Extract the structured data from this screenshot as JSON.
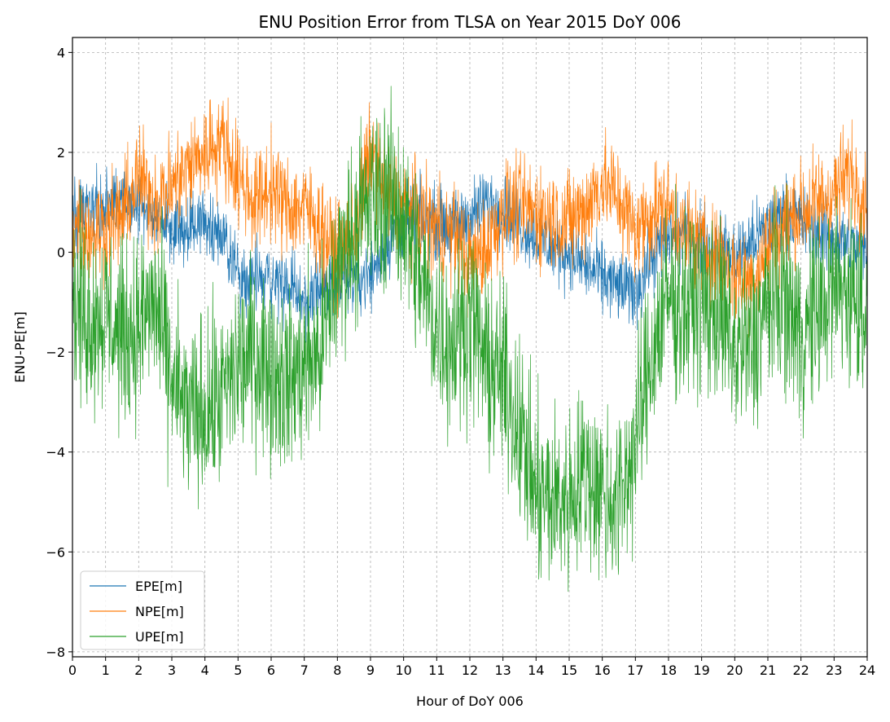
{
  "chart_data": {
    "type": "line",
    "title": "ENU Position Error from TLSA on Year 2015 DoY 006",
    "xlabel": "Hour of DoY 006",
    "ylabel": "ENU-PE[m]",
    "xlim": [
      0,
      24
    ],
    "ylim": [
      -8.1,
      4.3
    ],
    "x_ticks": [
      0,
      1,
      2,
      3,
      4,
      5,
      6,
      7,
      8,
      9,
      10,
      11,
      12,
      13,
      14,
      15,
      16,
      17,
      18,
      19,
      20,
      21,
      22,
      23,
      24
    ],
    "x_tick_labels": [
      "0",
      "1",
      "2",
      "3",
      "4",
      "5",
      "6",
      "7",
      "8",
      "9",
      "10",
      "11",
      "12",
      "13",
      "14",
      "15",
      "16",
      "17",
      "18",
      "19",
      "20",
      "21",
      "22",
      "23",
      "24"
    ],
    "y_ticks": [
      4,
      2,
      0,
      -2,
      -4,
      -6,
      -8
    ],
    "y_tick_labels": [
      "4",
      "2",
      "0",
      "−2",
      "−4",
      "−6",
      "−8"
    ],
    "grid": true,
    "legend_position": "lower-left",
    "x": [
      0,
      0.5,
      1,
      1.5,
      2,
      2.5,
      3,
      3.5,
      4,
      4.5,
      5,
      5.5,
      6,
      6.5,
      7,
      7.5,
      8,
      8.5,
      9,
      9.5,
      10,
      10.5,
      11,
      11.5,
      12,
      12.5,
      13,
      13.5,
      14,
      14.5,
      15,
      15.5,
      16,
      16.5,
      17,
      17.5,
      18,
      18.5,
      19,
      19.5,
      20,
      20.5,
      21,
      21.5,
      22,
      22.5,
      23,
      23.5,
      24
    ],
    "series": [
      {
        "name": "EPE[m]",
        "color": "#1f77b4",
        "values": [
          0.7,
          0.8,
          0.9,
          1.0,
          0.9,
          0.7,
          0.5,
          0.5,
          0.6,
          0.4,
          -0.4,
          -0.6,
          -0.5,
          -0.7,
          -1.0,
          -0.8,
          -0.4,
          -0.5,
          -0.5,
          0.2,
          0.6,
          0.7,
          0.6,
          0.5,
          0.7,
          1.0,
          0.9,
          0.6,
          0.3,
          0.1,
          0.0,
          -0.3,
          -0.5,
          -0.7,
          -0.8,
          -0.1,
          0.3,
          0.4,
          0.2,
          0.1,
          -0.1,
          0.2,
          0.5,
          0.8,
          0.6,
          0.4,
          0.3,
          0.1,
          0.0
        ],
        "noise": 0.35
      },
      {
        "name": "NPE[m]",
        "color": "#ff7f0e",
        "values": [
          0.6,
          0.4,
          0.5,
          0.7,
          1.5,
          1.0,
          1.3,
          1.7,
          2.0,
          2.3,
          1.5,
          1.0,
          1.3,
          0.9,
          0.9,
          0.5,
          -0.1,
          0.4,
          2.0,
          1.2,
          0.9,
          0.7,
          0.5,
          0.4,
          -0.2,
          0.1,
          0.8,
          0.9,
          0.8,
          0.7,
          0.6,
          0.9,
          1.4,
          1.1,
          0.4,
          0.8,
          0.9,
          0.4,
          0.1,
          -0.1,
          -0.5,
          -0.6,
          0.1,
          0.6,
          0.8,
          1.0,
          1.2,
          1.6,
          1.0
        ],
        "noise": 0.5
      },
      {
        "name": "UPE[m]",
        "color": "#2ca02c",
        "values": [
          -1.0,
          -1.3,
          -1.2,
          -1.7,
          -1.5,
          -1.0,
          -2.6,
          -3.3,
          -3.2,
          -2.9,
          -2.3,
          -2.0,
          -2.3,
          -2.6,
          -2.3,
          -2.0,
          -0.4,
          0.5,
          1.0,
          1.2,
          0.8,
          -0.5,
          -1.5,
          -1.8,
          -1.2,
          -2.3,
          -2.5,
          -3.5,
          -4.9,
          -5.0,
          -4.9,
          -4.4,
          -4.8,
          -5.0,
          -3.8,
          -2.0,
          -0.9,
          -1.1,
          -1.0,
          -1.2,
          -2.0,
          -1.9,
          -1.0,
          -0.9,
          -1.7,
          -1.2,
          -0.7,
          -0.8,
          -1.1
        ],
        "noise": 0.9
      }
    ]
  }
}
